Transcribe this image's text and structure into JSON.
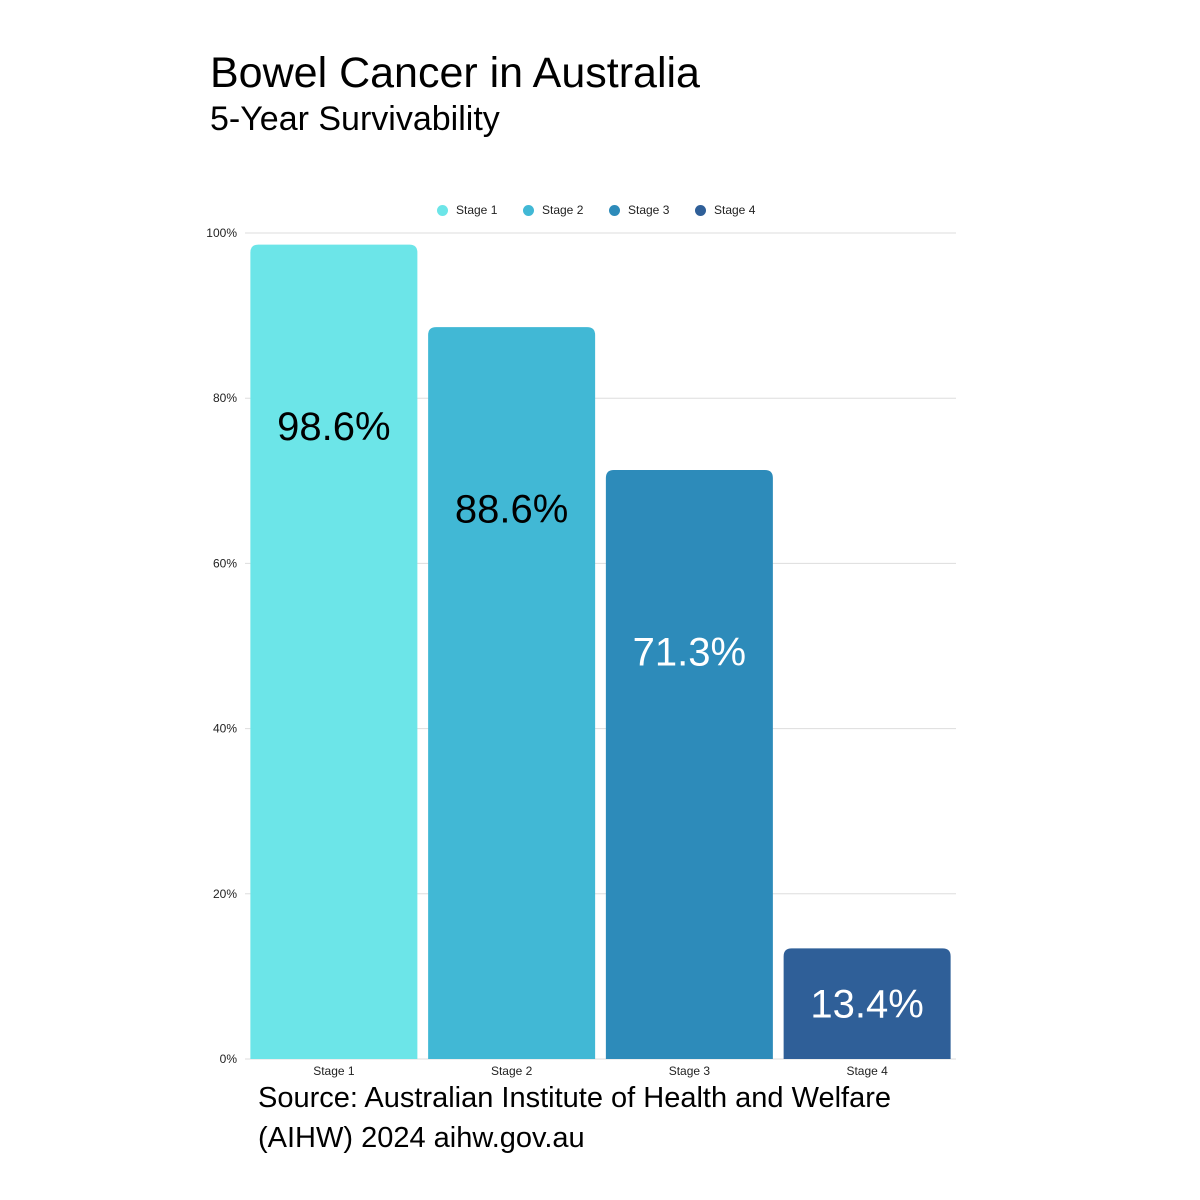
{
  "title": "Bowel Cancer in Australia",
  "subtitle": "5-Year Survivability",
  "source": "Source: Australian Institute of Health and Welfare (AIHW) 2024 aihw.gov.au",
  "legend": [
    {
      "label": "Stage 1",
      "color": "#6ce5e8"
    },
    {
      "label": "Stage 2",
      "color": "#41b8d5"
    },
    {
      "label": "Stage 3",
      "color": "#2d8bba"
    },
    {
      "label": "Stage 4",
      "color": "#2f5f98"
    }
  ],
  "chart_data": {
    "type": "bar",
    "categories": [
      "Stage 1",
      "Stage 2",
      "Stage 3",
      "Stage 4"
    ],
    "values": [
      98.6,
      88.6,
      71.3,
      13.4
    ],
    "data_labels": [
      "98.6%",
      "88.6%",
      "71.3%",
      "13.4%"
    ],
    "label_colors": [
      "#000000",
      "#000000",
      "#ffffff",
      "#ffffff"
    ],
    "colors": [
      "#6ce5e8",
      "#41b8d5",
      "#2d8bba",
      "#2f5f98"
    ],
    "ylim": [
      0,
      100
    ],
    "yticks": [
      0,
      20,
      40,
      60,
      80,
      100
    ],
    "ytick_labels": [
      "0%",
      "20%",
      "40%",
      "60%",
      "80%",
      "100%"
    ],
    "grid": true,
    "legend_position": "top-center"
  }
}
